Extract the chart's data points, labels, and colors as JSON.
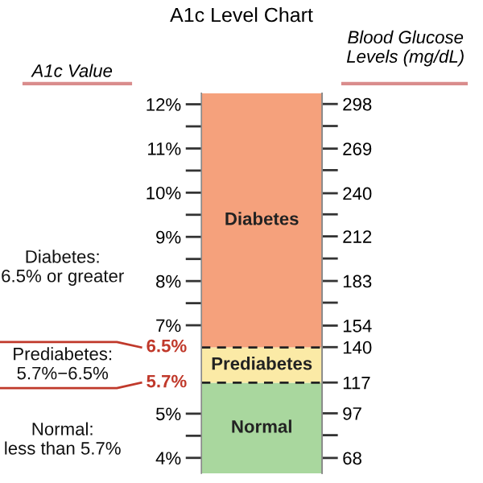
{
  "chart_data": {
    "type": "bar",
    "title": "A1c Level Chart",
    "ylabel": "A1c Value",
    "y2label": "Blood Glucose\nLevels (mg/dL)",
    "categories": [
      null
    ],
    "values": [
      null
    ],
    "bands": [
      {
        "axis": "y",
        "from": 3.65,
        "to": 5.7,
        "label": "Normal",
        "color": "#a9d79e"
      },
      {
        "axis": "y",
        "from": 5.7,
        "to": 6.5,
        "label": "Prediabetes",
        "color": "#fbeaa6"
      },
      {
        "axis": "y",
        "from": 6.5,
        "to": 12.25,
        "label": "Diabetes",
        "color": "#f5a17c"
      }
    ],
    "ylim": [
      3.65,
      12.25
    ],
    "yticks": [
      {
        "value": 4,
        "label": "4%"
      },
      {
        "value": 4.5,
        "label": null
      },
      {
        "value": 5,
        "label": "5%"
      },
      {
        "value": 7,
        "label": "7%"
      },
      {
        "value": 7.5,
        "label": null
      },
      {
        "value": 8,
        "label": "8%"
      },
      {
        "value": 8.5,
        "label": null
      },
      {
        "value": 9,
        "label": "9%"
      },
      {
        "value": 9.5,
        "label": null
      },
      {
        "value": 10,
        "label": "10%"
      },
      {
        "value": 10.5,
        "label": null
      },
      {
        "value": 11,
        "label": "11%"
      },
      {
        "value": 11.5,
        "label": null
      },
      {
        "value": 12,
        "label": "12%"
      }
    ],
    "y2lim": [
      58,
      305
    ],
    "y2ticks": [
      68,
      {
        "value": 82.8,
        "label": null
      },
      97,
      117,
      140,
      154,
      {
        "value": 168.9,
        "label": null
      },
      183,
      {
        "value": 197.6,
        "label": null
      },
      212,
      {
        "value": 226.3,
        "label": null
      },
      240,
      {
        "value": 255.0,
        "label": null
      },
      269,
      {
        "value": 283.7,
        "label": null
      },
      298
    ],
    "ref_lines": [
      {
        "axis": "y",
        "value": 6.5,
        "label": "6.5%",
        "color": "#222222",
        "line_style": "dashed"
      },
      {
        "axis": "y",
        "value": 5.7,
        "label": "5.7%",
        "color": "#222222",
        "line_style": "dashed"
      }
    ],
    "annotations": [
      "Normal:\nless than 5.7%",
      "Prediabetes:\n5.7%−6.5%",
      "Diabetes:\n6.5% or greater"
    ]
  }
}
